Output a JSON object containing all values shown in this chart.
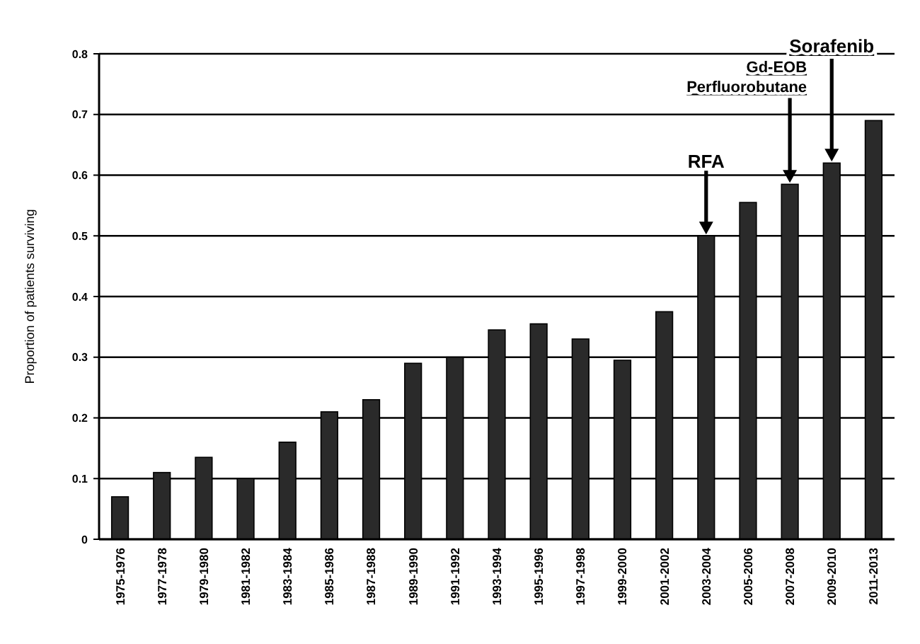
{
  "chart_data": {
    "type": "bar",
    "ylabel": "Proportion of patients surviving",
    "categories": [
      "1975-1976",
      "1977-1978",
      "1979-1980",
      "1981-1982",
      "1983-1984",
      "1985-1986",
      "1987-1988",
      "1989-1990",
      "1991-1992",
      "1993-1994",
      "1995-1996",
      "1997-1998",
      "1999-2000",
      "2001-2002",
      "2003-2004",
      "2005-2006",
      "2007-2008",
      "2009-2010",
      "2011-2013"
    ],
    "values": [
      0.07,
      0.11,
      0.135,
      0.1,
      0.16,
      0.21,
      0.23,
      0.29,
      0.3,
      0.345,
      0.355,
      0.33,
      0.295,
      0.375,
      0.5,
      0.555,
      0.585,
      0.62,
      0.69
    ],
    "color": "#2a2a2a",
    "ylim": [
      0,
      0.8
    ],
    "yticks": [
      0,
      0.1,
      0.2,
      0.3,
      0.4,
      0.5,
      0.6,
      0.7,
      0.8
    ],
    "grid": "y",
    "annotations": [
      "RFA",
      "Gd-EOB\nPerfluorobutane",
      "Sorafenib"
    ]
  }
}
